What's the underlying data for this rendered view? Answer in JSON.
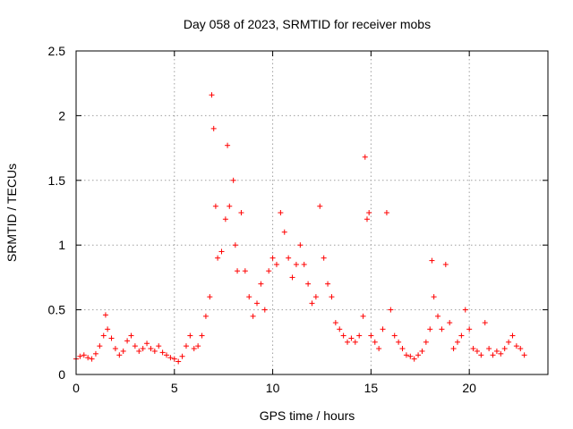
{
  "chart_data": {
    "type": "scatter",
    "title": "Day 058 of 2023, SRMTID for receiver mobs",
    "xlabel": "GPS time / hours",
    "ylabel": "SRMTID / TECUs",
    "xlim": [
      0,
      24
    ],
    "ylim": [
      0,
      2.5
    ],
    "xticks": [
      0,
      5,
      10,
      15,
      20
    ],
    "xtick_labels": [
      "0",
      "5",
      "10",
      "15",
      "20"
    ],
    "yticks": [
      0,
      0.5,
      1,
      1.5,
      2,
      2.5
    ],
    "ytick_labels": [
      "0",
      "0.5",
      "1",
      "1.5",
      "2",
      "2.5"
    ],
    "grid": true,
    "marker": "+",
    "color": "#ff0000",
    "series": [
      {
        "name": "mobs",
        "x": [
          0.0,
          0.2,
          0.4,
          0.6,
          0.8,
          1.0,
          1.2,
          1.4,
          1.5,
          1.6,
          1.8,
          2.0,
          2.2,
          2.4,
          2.6,
          2.8,
          3.0,
          3.2,
          3.4,
          3.6,
          3.8,
          4.0,
          4.2,
          4.4,
          4.6,
          4.8,
          5.0,
          5.2,
          5.4,
          5.6,
          5.8,
          6.0,
          6.2,
          6.4,
          6.6,
          6.8,
          6.9,
          7.0,
          7.1,
          7.2,
          7.4,
          7.6,
          7.7,
          7.8,
          8.0,
          8.1,
          8.2,
          8.4,
          8.6,
          8.8,
          9.0,
          9.2,
          9.4,
          9.6,
          9.8,
          10.0,
          10.2,
          10.4,
          10.6,
          10.8,
          11.0,
          11.2,
          11.4,
          11.6,
          11.8,
          12.0,
          12.2,
          12.4,
          12.6,
          12.8,
          13.0,
          13.2,
          13.4,
          13.6,
          13.8,
          14.0,
          14.2,
          14.4,
          14.6,
          14.7,
          14.8,
          14.9,
          15.0,
          15.2,
          15.4,
          15.6,
          15.8,
          16.0,
          16.2,
          16.4,
          16.6,
          16.8,
          17.0,
          17.2,
          17.4,
          17.6,
          17.8,
          18.0,
          18.1,
          18.2,
          18.4,
          18.6,
          18.8,
          19.0,
          19.2,
          19.4,
          19.6,
          19.8,
          20.0,
          20.2,
          20.4,
          20.6,
          20.8,
          21.0,
          21.2,
          21.4,
          21.6,
          21.8,
          22.0,
          22.2,
          22.4,
          22.6,
          22.8
        ],
        "y": [
          0.12,
          0.14,
          0.15,
          0.13,
          0.12,
          0.16,
          0.22,
          0.3,
          0.46,
          0.35,
          0.28,
          0.2,
          0.15,
          0.18,
          0.26,
          0.3,
          0.22,
          0.18,
          0.2,
          0.24,
          0.2,
          0.18,
          0.22,
          0.17,
          0.15,
          0.13,
          0.12,
          0.1,
          0.14,
          0.22,
          0.3,
          0.2,
          0.22,
          0.3,
          0.45,
          0.6,
          2.16,
          1.9,
          1.3,
          0.9,
          0.95,
          1.2,
          1.77,
          1.3,
          1.5,
          1.0,
          0.8,
          1.25,
          0.8,
          0.6,
          0.45,
          0.55,
          0.7,
          0.5,
          0.8,
          0.9,
          0.85,
          1.25,
          1.1,
          0.9,
          0.75,
          0.85,
          1.0,
          0.85,
          0.7,
          0.55,
          0.6,
          1.3,
          0.9,
          0.7,
          0.6,
          0.4,
          0.35,
          0.3,
          0.25,
          0.28,
          0.25,
          0.3,
          0.45,
          1.68,
          1.2,
          1.25,
          0.3,
          0.25,
          0.2,
          0.35,
          1.25,
          0.5,
          0.3,
          0.25,
          0.2,
          0.15,
          0.14,
          0.12,
          0.15,
          0.18,
          0.25,
          0.35,
          0.88,
          0.6,
          0.45,
          0.35,
          0.85,
          0.4,
          0.2,
          0.25,
          0.3,
          0.5,
          0.35,
          0.2,
          0.18,
          0.15,
          0.4,
          0.2,
          0.15,
          0.18,
          0.16,
          0.2,
          0.25,
          0.3,
          0.22,
          0.2,
          0.15
        ]
      }
    ]
  }
}
